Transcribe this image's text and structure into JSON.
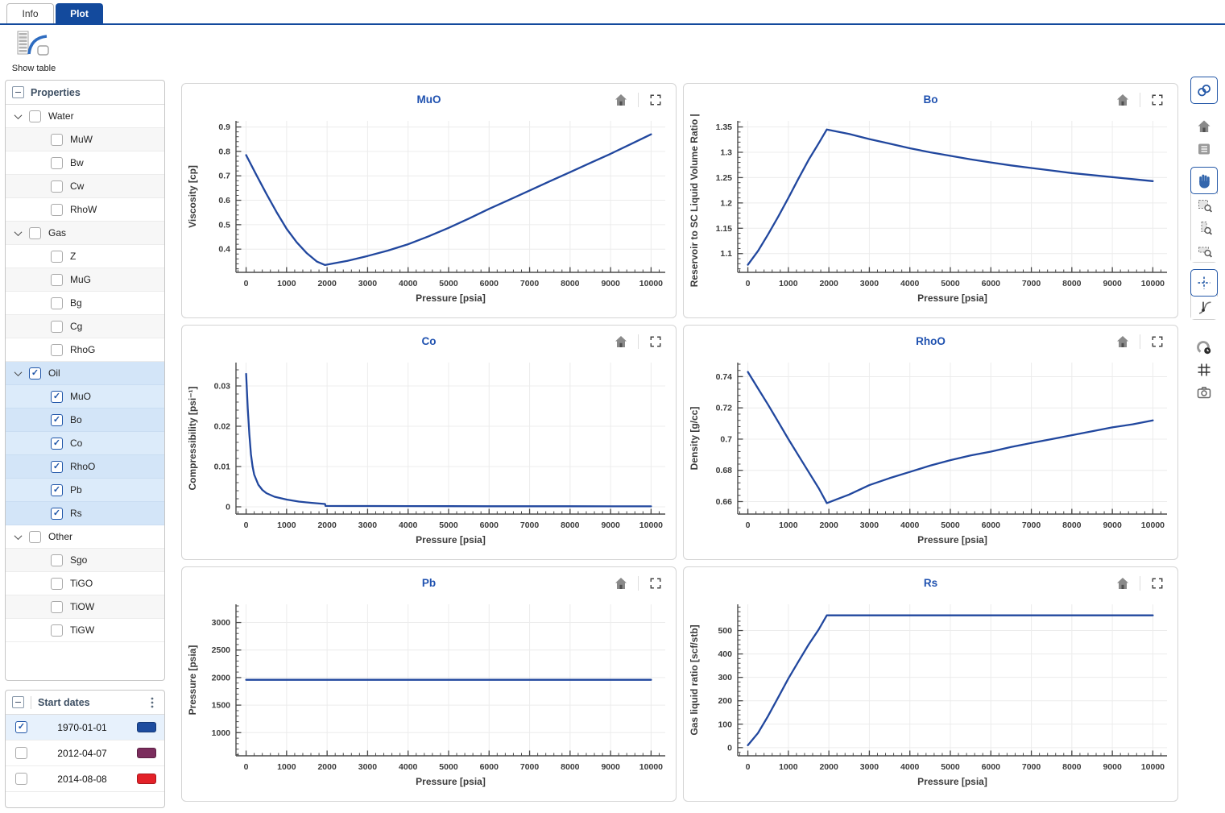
{
  "tabs": [
    {
      "label": "Info",
      "active": false
    },
    {
      "label": "Plot",
      "active": true
    }
  ],
  "toolbar": {
    "show_table_label": "Show table"
  },
  "properties_panel": {
    "title": "Properties",
    "groups": [
      {
        "label": "Water",
        "checked": false,
        "items": [
          {
            "label": "MuW",
            "checked": false
          },
          {
            "label": "Bw",
            "checked": false
          },
          {
            "label": "Cw",
            "checked": false
          },
          {
            "label": "RhoW",
            "checked": false
          }
        ]
      },
      {
        "label": "Gas",
        "checked": false,
        "items": [
          {
            "label": "Z",
            "checked": false
          },
          {
            "label": "MuG",
            "checked": false
          },
          {
            "label": "Bg",
            "checked": false
          },
          {
            "label": "Cg",
            "checked": false
          },
          {
            "label": "RhoG",
            "checked": false
          }
        ]
      },
      {
        "label": "Oil",
        "checked": true,
        "items": [
          {
            "label": "MuO",
            "checked": true
          },
          {
            "label": "Bo",
            "checked": true
          },
          {
            "label": "Co",
            "checked": true
          },
          {
            "label": "RhoO",
            "checked": true
          },
          {
            "label": "Pb",
            "checked": true
          },
          {
            "label": "Rs",
            "checked": true
          }
        ]
      },
      {
        "label": "Other",
        "checked": false,
        "items": [
          {
            "label": "Sgo",
            "checked": false
          },
          {
            "label": "TiGO",
            "checked": false
          },
          {
            "label": "TiOW",
            "checked": false
          },
          {
            "label": "TiGW",
            "checked": false
          }
        ]
      }
    ]
  },
  "start_dates_panel": {
    "title": "Start dates",
    "rows": [
      {
        "date": "1970-01-01",
        "checked": true,
        "color": "#1d4c9f"
      },
      {
        "date": "2012-04-07",
        "checked": false,
        "color": "#7b2d5d"
      },
      {
        "date": "2014-08-08",
        "checked": false,
        "color": "#e32128"
      }
    ]
  },
  "colors": {
    "accent_blue": "#134a9d",
    "curve_blue": "#21479e",
    "selection_bg": "#dcebfa"
  },
  "chart_data": [
    {
      "type": "line",
      "title": "MuO",
      "xlabel": "Pressure [psia]",
      "ylabel": "Viscosity [cp]",
      "xlim": [
        -250,
        10350
      ],
      "ylim": [
        0.305,
        0.925
      ],
      "xticks": [
        0,
        1000,
        2000,
        3000,
        4000,
        5000,
        6000,
        7000,
        8000,
        9000,
        10000
      ],
      "xtick_labels": [
        "0",
        "1000",
        "2000",
        "3000",
        "4000",
        "5000",
        "6000",
        "7000",
        "8000",
        "9000",
        "10000"
      ],
      "yticks": [
        0.4,
        0.5,
        0.6,
        0.7,
        0.8,
        0.9
      ],
      "ytick_labels": [
        "0.4",
        "0.5",
        "0.6",
        "0.7",
        "0.8",
        "0.9"
      ],
      "grid": true,
      "series": [
        {
          "name": "1970-01-01",
          "color": "#21479e",
          "x": [
            0,
            250,
            500,
            750,
            1000,
            1250,
            1500,
            1750,
            1950,
            2200,
            2500,
            3000,
            3500,
            4000,
            4500,
            5000,
            5500,
            6000,
            6500,
            7000,
            7500,
            8000,
            8500,
            9000,
            9500,
            10000
          ],
          "y": [
            0.785,
            0.705,
            0.627,
            0.552,
            0.483,
            0.428,
            0.383,
            0.349,
            0.335,
            0.343,
            0.352,
            0.372,
            0.394,
            0.42,
            0.452,
            0.487,
            0.525,
            0.565,
            0.602,
            0.64,
            0.678,
            0.715,
            0.753,
            0.79,
            0.83,
            0.87
          ]
        }
      ]
    },
    {
      "type": "line",
      "title": "Bo",
      "xlabel": "Pressure [psia]",
      "ylabel": "Reservoir to SC Liquid Volume Ratio [rt",
      "xlim": [
        -250,
        10350
      ],
      "ylim": [
        1.063,
        1.362
      ],
      "xticks": [
        0,
        1000,
        2000,
        3000,
        4000,
        5000,
        6000,
        7000,
        8000,
        9000,
        10000
      ],
      "xtick_labels": [
        "0",
        "1000",
        "2000",
        "3000",
        "4000",
        "5000",
        "6000",
        "7000",
        "8000",
        "9000",
        "10000"
      ],
      "yticks": [
        1.1,
        1.15,
        1.2,
        1.25,
        1.3,
        1.35
      ],
      "ytick_labels": [
        "1.1",
        "1.15",
        "1.2",
        "1.25",
        "1.3",
        "1.35"
      ],
      "grid": true,
      "series": [
        {
          "name": "1970-01-01",
          "color": "#21479e",
          "x": [
            0,
            250,
            500,
            750,
            1000,
            1250,
            1500,
            1750,
            1950,
            2200,
            2500,
            3000,
            3500,
            4000,
            4500,
            5000,
            5500,
            6000,
            6500,
            7000,
            7500,
            8000,
            8500,
            9000,
            9500,
            10000
          ],
          "y": [
            1.078,
            1.105,
            1.138,
            1.173,
            1.21,
            1.248,
            1.285,
            1.318,
            1.345,
            1.341,
            1.336,
            1.326,
            1.317,
            1.308,
            1.3,
            1.293,
            1.286,
            1.28,
            1.274,
            1.269,
            1.264,
            1.259,
            1.255,
            1.251,
            1.247,
            1.243
          ]
        }
      ]
    },
    {
      "type": "line",
      "title": "Co",
      "xlabel": "Pressure [psia]",
      "ylabel": "Compressibility [psi⁻¹]",
      "xlim": [
        -250,
        10350
      ],
      "ylim": [
        -0.0018,
        0.0358
      ],
      "xticks": [
        0,
        1000,
        2000,
        3000,
        4000,
        5000,
        6000,
        7000,
        8000,
        9000,
        10000
      ],
      "xtick_labels": [
        "0",
        "1000",
        "2000",
        "3000",
        "4000",
        "5000",
        "6000",
        "7000",
        "8000",
        "9000",
        "10000"
      ],
      "yticks": [
        0,
        0.01,
        0.02,
        0.03
      ],
      "ytick_labels": [
        "0",
        "0.01",
        "0.02",
        "0.03"
      ],
      "grid": true,
      "series": [
        {
          "name": "1970-01-01",
          "color": "#21479e",
          "x": [
            0,
            40,
            80,
            120,
            160,
            200,
            300,
            400,
            500,
            700,
            1000,
            1300,
            1600,
            1950,
            1960,
            2500,
            3000,
            4000,
            5000,
            6000,
            7000,
            8000,
            9000,
            10000
          ],
          "y": [
            0.033,
            0.0245,
            0.018,
            0.013,
            0.01,
            0.008,
            0.0055,
            0.0042,
            0.0034,
            0.0025,
            0.0018,
            0.0013,
            0.001,
            0.0007,
            0.00022,
            0.0002,
            0.00019,
            0.00017,
            0.00016,
            0.00015,
            0.00014,
            0.00013,
            0.00012,
            0.00012
          ]
        }
      ]
    },
    {
      "type": "line",
      "title": "RhoO",
      "xlabel": "Pressure [psia]",
      "ylabel": "Density [g/cc]",
      "xlim": [
        -250,
        10350
      ],
      "ylim": [
        0.652,
        0.749
      ],
      "xticks": [
        0,
        1000,
        2000,
        3000,
        4000,
        5000,
        6000,
        7000,
        8000,
        9000,
        10000
      ],
      "xtick_labels": [
        "0",
        "1000",
        "2000",
        "3000",
        "4000",
        "5000",
        "6000",
        "7000",
        "8000",
        "9000",
        "10000"
      ],
      "yticks": [
        0.66,
        0.68,
        0.7,
        0.72,
        0.74
      ],
      "ytick_labels": [
        "0.66",
        "0.68",
        "0.7",
        "0.72",
        "0.74"
      ],
      "grid": true,
      "series": [
        {
          "name": "1970-01-01",
          "color": "#21479e",
          "x": [
            0,
            250,
            500,
            750,
            1000,
            1250,
            1500,
            1750,
            1950,
            2200,
            2500,
            3000,
            3500,
            4000,
            4500,
            5000,
            5500,
            6000,
            6500,
            7000,
            7500,
            8000,
            8500,
            9000,
            9500,
            10000
          ],
          "y": [
            0.743,
            0.7325,
            0.722,
            0.711,
            0.7,
            0.6895,
            0.679,
            0.6685,
            0.659,
            0.6615,
            0.6645,
            0.6705,
            0.675,
            0.679,
            0.683,
            0.6865,
            0.6895,
            0.692,
            0.695,
            0.6975,
            0.7,
            0.7025,
            0.705,
            0.7075,
            0.7095,
            0.712
          ]
        }
      ]
    },
    {
      "type": "line",
      "title": "Pb",
      "xlabel": "Pressure [psia]",
      "ylabel": "Pressure [psia]",
      "xlim": [
        -250,
        10350
      ],
      "ylim": [
        580,
        3330
      ],
      "xticks": [
        0,
        1000,
        2000,
        3000,
        4000,
        5000,
        6000,
        7000,
        8000,
        9000,
        10000
      ],
      "xtick_labels": [
        "0",
        "1000",
        "2000",
        "3000",
        "4000",
        "5000",
        "6000",
        "7000",
        "8000",
        "9000",
        "10000"
      ],
      "yticks": [
        1000,
        1500,
        2000,
        2500,
        3000
      ],
      "ytick_labels": [
        "1000",
        "1500",
        "2000",
        "2500",
        "3000"
      ],
      "grid": true,
      "series": [
        {
          "name": "1970-01-01",
          "color": "#21479e",
          "x": [
            0,
            10000
          ],
          "y": [
            1960,
            1960
          ]
        }
      ]
    },
    {
      "type": "line",
      "title": "Rs",
      "xlabel": "Pressure [psia]",
      "ylabel": "Gas liquid ratio [scf/stb]",
      "xlim": [
        -250,
        10350
      ],
      "ylim": [
        -35,
        612
      ],
      "xticks": [
        0,
        1000,
        2000,
        3000,
        4000,
        5000,
        6000,
        7000,
        8000,
        9000,
        10000
      ],
      "xtick_labels": [
        "0",
        "1000",
        "2000",
        "3000",
        "4000",
        "5000",
        "6000",
        "7000",
        "8000",
        "9000",
        "10000"
      ],
      "yticks": [
        0,
        100,
        200,
        300,
        400,
        500
      ],
      "ytick_labels": [
        "0",
        "100",
        "200",
        "300",
        "400",
        "500"
      ],
      "grid": true,
      "series": [
        {
          "name": "1970-01-01",
          "color": "#21479e",
          "x": [
            0,
            250,
            500,
            750,
            1000,
            1250,
            1500,
            1750,
            1950,
            3000,
            5000,
            8000,
            10000
          ],
          "y": [
            10,
            62,
            135,
            215,
            295,
            368,
            440,
            505,
            565,
            565,
            565,
            565,
            565
          ]
        }
      ]
    }
  ]
}
